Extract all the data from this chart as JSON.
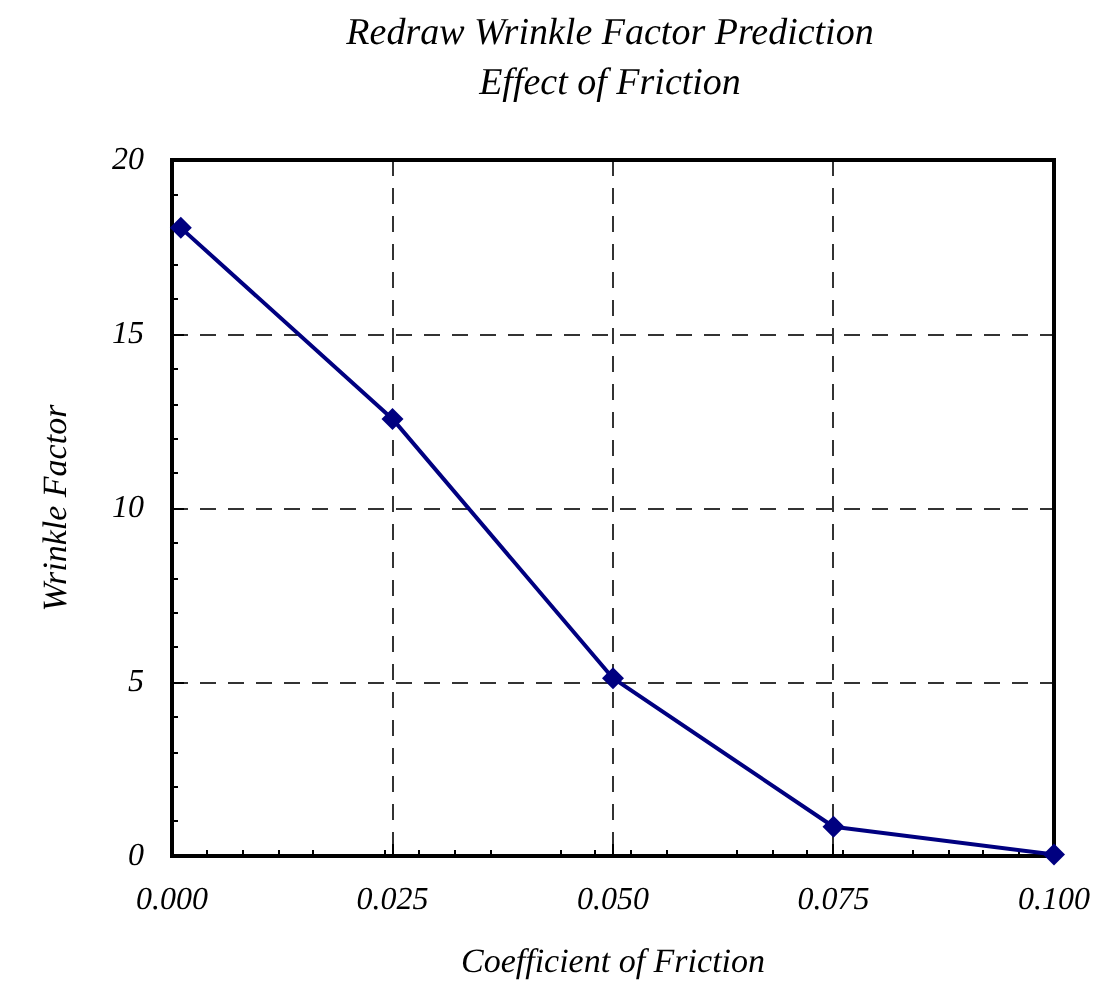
{
  "chart_data": {
    "type": "line",
    "title": "Redraw Wrinkle Factor Prediction",
    "subtitle": "Effect of Friction",
    "xlabel": "Coefficient of Friction",
    "ylabel": "Wrinkle Factor",
    "x": [
      0.001,
      0.025,
      0.05,
      0.075,
      0.1
    ],
    "series": [
      {
        "color": "#000080",
        "values": [
          18.05,
          12.56,
          5.11,
          0.84,
          0.04
        ]
      }
    ],
    "xlim": [
      0,
      0.1
    ],
    "xticks": [
      {
        "value": 0,
        "label": "0.000"
      },
      {
        "value": 0.025,
        "label": "0.025"
      },
      {
        "value": 0.05,
        "label": "0.050"
      },
      {
        "value": 0.075,
        "label": "0.075"
      },
      {
        "value": 0.1,
        "label": "0.100"
      }
    ],
    "ylim": [
      0,
      20
    ],
    "yticks": [
      0,
      5,
      10,
      15,
      20
    ],
    "grid": true,
    "marker": "diamond",
    "line_style": "solid"
  }
}
